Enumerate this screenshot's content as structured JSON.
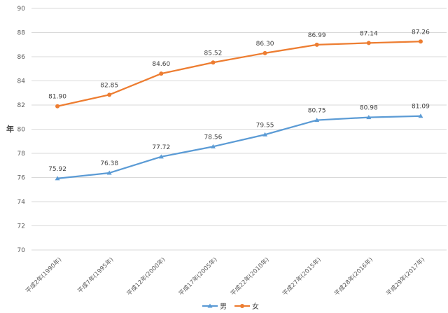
{
  "chart_data": {
    "type": "line",
    "title": "",
    "xlabel": "",
    "ylabel": "年",
    "ylim": [
      70,
      90
    ],
    "yticks": [
      70,
      72,
      74,
      76,
      78,
      80,
      82,
      84,
      86,
      88,
      90
    ],
    "grid": true,
    "legend": "bottom",
    "categories": [
      "平成2年(1990年)",
      "平成7年(1995年)",
      "平成12年(2000年)",
      "平成17年(2005年)",
      "平成22年(2010年)",
      "平成27年(2015年)",
      "平成28年(2016年)",
      "平成29年(2017年)"
    ],
    "series": [
      {
        "name": "男",
        "color": "#5B9BD5",
        "marker": "triangle",
        "values": [
          75.92,
          76.38,
          77.72,
          78.56,
          79.55,
          80.75,
          80.98,
          81.09
        ]
      },
      {
        "name": "女",
        "color": "#ED7D31",
        "marker": "circle",
        "values": [
          81.9,
          82.85,
          84.6,
          85.52,
          86.3,
          86.99,
          87.14,
          87.26
        ]
      }
    ]
  }
}
